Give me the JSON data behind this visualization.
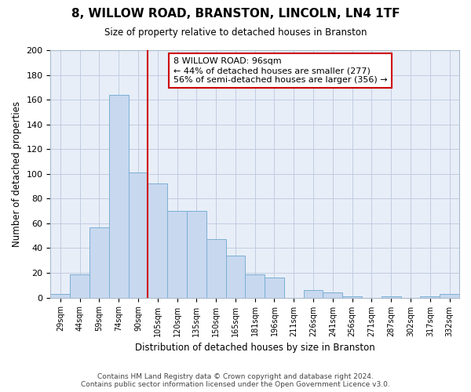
{
  "title": "8, WILLOW ROAD, BRANSTON, LINCOLN, LN4 1TF",
  "subtitle": "Size of property relative to detached houses in Branston",
  "xlabel": "Distribution of detached houses by size in Branston",
  "ylabel": "Number of detached properties",
  "bar_labels": [
    "29sqm",
    "44sqm",
    "59sqm",
    "74sqm",
    "90sqm",
    "105sqm",
    "120sqm",
    "135sqm",
    "150sqm",
    "165sqm",
    "181sqm",
    "196sqm",
    "211sqm",
    "226sqm",
    "241sqm",
    "256sqm",
    "271sqm",
    "287sqm",
    "302sqm",
    "317sqm",
    "332sqm"
  ],
  "bar_values": [
    3,
    19,
    57,
    164,
    101,
    92,
    70,
    70,
    47,
    34,
    19,
    16,
    0,
    6,
    4,
    1,
    0,
    1,
    0,
    1,
    3
  ],
  "bar_color": "#c8d8ef",
  "bar_edge_color": "#7aafd4",
  "vline_color": "#cc0000",
  "vline_pos": 4.5,
  "ylim": [
    0,
    200
  ],
  "yticks": [
    0,
    20,
    40,
    60,
    80,
    100,
    120,
    140,
    160,
    180,
    200
  ],
  "annotation_title": "8 WILLOW ROAD: 96sqm",
  "annotation_line1": "← 44% of detached houses are smaller (277)",
  "annotation_line2": "56% of semi-detached houses are larger (356) →",
  "annotation_box_color": "#ffffff",
  "annotation_box_edgecolor": "#cc0000",
  "footer_line1": "Contains HM Land Registry data © Crown copyright and database right 2024.",
  "footer_line2": "Contains public sector information licensed under the Open Government Licence v3.0.",
  "background_color": "#ffffff",
  "plot_bg_color": "#e8eef8",
  "grid_color": "#c0cce0"
}
